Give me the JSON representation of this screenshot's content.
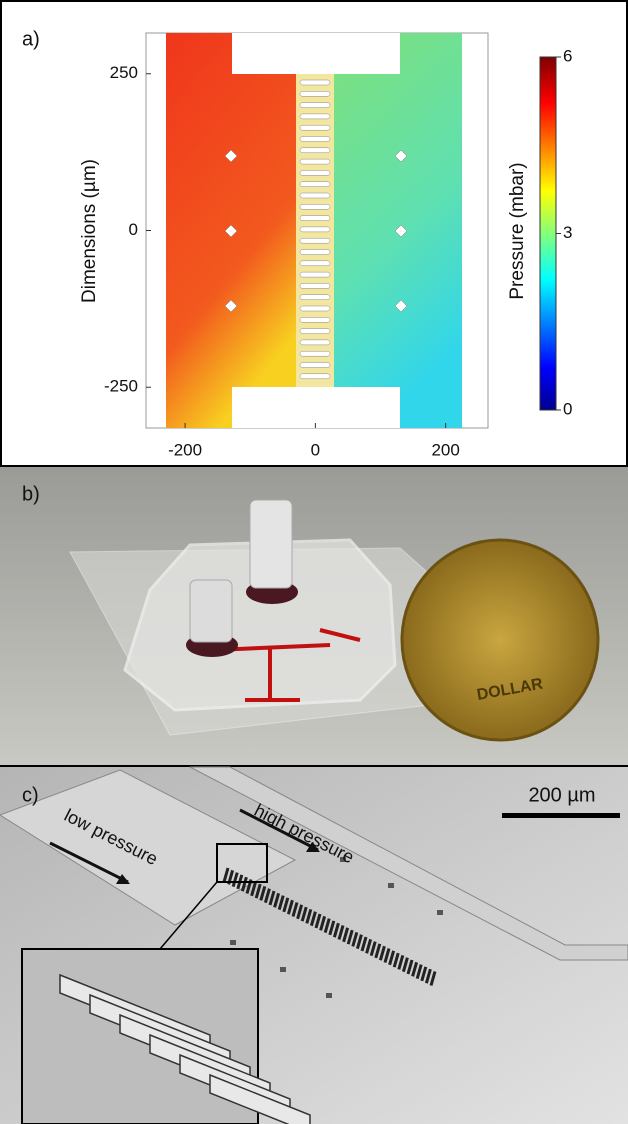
{
  "chart_data": {
    "type": "heatmap",
    "label": "a)",
    "y_label": "Dimensions (µm)",
    "xlim": [
      -260,
      265
    ],
    "ylim": [
      -315,
      315
    ],
    "xticks": [
      -200,
      0,
      200
    ],
    "yticks": [
      -250,
      0,
      250
    ],
    "colorbar": {
      "label": "Pressure (mbar)",
      "lim": [
        0,
        6
      ],
      "ticks": [
        0,
        3,
        6
      ]
    }
  },
  "panel_b": {
    "label": "b)",
    "coin_text": "DOLLAR"
  },
  "panel_c": {
    "label": "c)",
    "annotations": [
      "high pressure",
      "low pressure"
    ],
    "scale_bar": "200 µm"
  }
}
